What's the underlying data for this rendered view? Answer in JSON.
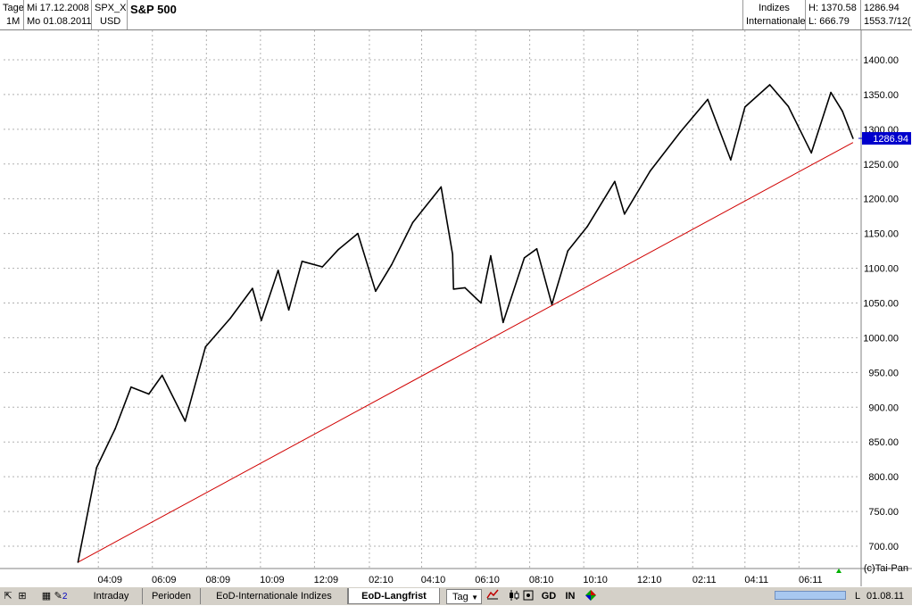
{
  "header": {
    "period": "Tage",
    "interval": "1M",
    "date_from": "Mi 17.12.2008",
    "date_to": "Mo 01.08.2011",
    "symbol": "SPX_X",
    "currency": "USD",
    "name": "S&P 500",
    "category_1": "Indizes",
    "category_2": "Internationale",
    "high": "H: 1370.58",
    "low": "L: 666.79",
    "last": "1286.94",
    "range": "1553.7/12("
  },
  "chart_data": {
    "type": "line",
    "title": "",
    "x": [
      "2009-03-09",
      "2009-03-30",
      "2009-04-20",
      "2009-05-08",
      "2009-05-28",
      "2009-06-12",
      "2009-07-08",
      "2009-07-31",
      "2009-08-28",
      "2009-09-22",
      "2009-10-02",
      "2009-10-21",
      "2009-11-02",
      "2009-11-17",
      "2009-12-10",
      "2009-12-28",
      "2010-01-19",
      "2010-02-08",
      "2010-02-26",
      "2010-03-22",
      "2010-04-23",
      "2010-05-06",
      "2010-05-07",
      "2010-05-20",
      "2010-06-07",
      "2010-06-18",
      "2010-07-02",
      "2010-07-26",
      "2010-08-09",
      "2010-08-26",
      "2010-09-13",
      "2010-10-05",
      "2010-11-05",
      "2010-11-16",
      "2010-12-15",
      "2011-01-18",
      "2011-02-18",
      "2011-03-16",
      "2011-04-01",
      "2011-04-29",
      "2011-05-20",
      "2011-06-15",
      "2011-07-07",
      "2011-07-20",
      "2011-08-01"
    ],
    "series": [
      {
        "name": "",
        "values": [
          677,
          813,
          869,
          929,
          919,
          946,
          880,
          987,
          1028,
          1071,
          1025,
          1097,
          1040,
          1110,
          1102,
          1127,
          1150,
          1067,
          1105,
          1166,
          1217,
          1120,
          1070,
          1072,
          1050,
          1118,
          1022,
          1115,
          1128,
          1048,
          1125,
          1160,
          1225,
          1178,
          1240,
          1296,
          1343,
          1256,
          1332,
          1364,
          1333,
          1266,
          1353,
          1326,
          1287
        ]
      }
    ],
    "trendline": {
      "from": [
        "2009-03-09",
        677
      ],
      "to": [
        "2011-08-01",
        1281
      ]
    },
    "ylim": [
      690,
      1420
    ],
    "yticks": [
      "1400.00",
      "1350.00",
      "1300.00",
      "1250.00",
      "1200.00",
      "1150.00",
      "1100.00",
      "1050.00",
      "1000.00",
      "950.00",
      "900.00",
      "850.00",
      "800.00",
      "750.00",
      "700.00"
    ],
    "xticks": [
      "04:09",
      "06:09",
      "08:09",
      "10:09",
      "12:09",
      "02:10",
      "04:10",
      "06:10",
      "08:10",
      "10:10",
      "12:10",
      "02:11",
      "04:11",
      "06:11"
    ],
    "last_value_label": "1286.94",
    "copyright": "(c)Tai-Pan",
    "grid": true,
    "colors": {
      "price": "#000000",
      "trendline": "#d00000",
      "last_label_bg": "#0000cc",
      "grid": "#b0b0b0"
    }
  },
  "bottom_bar": {
    "tabs": [
      "Intraday",
      "Perioden",
      "EoD-Internationale Indizes",
      "EoD-Langfrist"
    ],
    "active_tab": "EoD-Langfrist",
    "period_select": "Tag",
    "gd_label": "GD",
    "in_label": "IN",
    "pencil_count": "2",
    "scroll_right_label": "L",
    "date_label": "01.08.11"
  }
}
